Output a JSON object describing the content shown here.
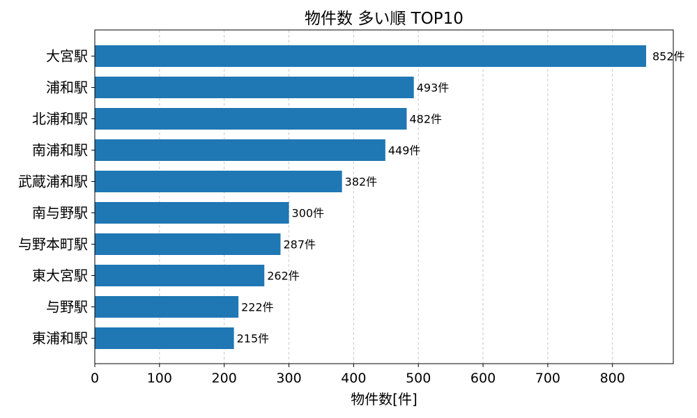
{
  "chart_data": {
    "type": "bar",
    "orientation": "horizontal",
    "title": "物件数 多い順 TOP10",
    "xlabel": "物件数[件]",
    "ylabel": "",
    "categories": [
      "大宮駅",
      "浦和駅",
      "北浦和駅",
      "南浦和駅",
      "武蔵浦和駅",
      "南与野駅",
      "与野本町駅",
      "東大宮駅",
      "与野駅",
      "東浦和駅"
    ],
    "values": [
      852,
      493,
      482,
      449,
      382,
      300,
      287,
      262,
      222,
      215
    ],
    "value_suffix": "件",
    "xlim": [
      0,
      894
    ],
    "xticks": [
      0,
      100,
      200,
      300,
      400,
      500,
      600,
      700,
      800
    ],
    "grid": "x-dashed",
    "legend": "none",
    "bar_color": "#1f77b4"
  }
}
